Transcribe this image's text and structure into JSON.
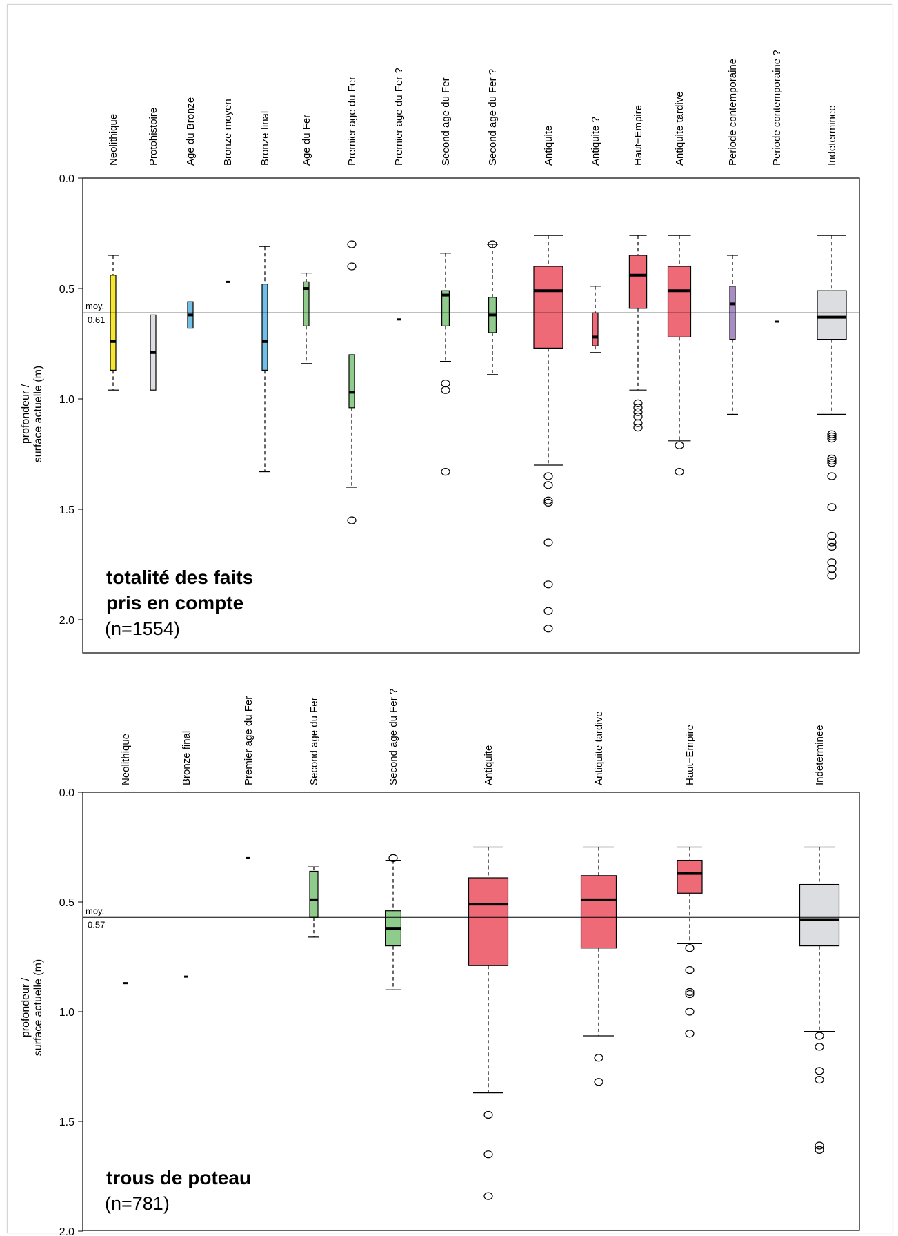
{
  "colors": {
    "yellow": "#f4e632",
    "blue": "#71bfe6",
    "green": "#8fcc8c",
    "red": "#ef6a77",
    "purple": "#a98bc5",
    "gray": "#dcdde0"
  },
  "chart_data": [
    {
      "type": "boxplot",
      "title": "totalité des faits",
      "title_line2": "pris en compte",
      "n_label": "(n=1554)",
      "ylabel_line1": "profondeur /",
      "ylabel_line2": "surface actuelle (m)",
      "ylim": [
        0,
        2.15
      ],
      "y_inverted": true,
      "yticks": [
        "0.0",
        "0.5",
        "1.0",
        "1.5",
        "2.0"
      ],
      "ytick_values": [
        0,
        0.5,
        1.0,
        1.5,
        2.0
      ],
      "mean_label": "moy.",
      "mean_value_label": "0.61",
      "mean": 0.61,
      "categories": [
        "Neolithique",
        "Protohistoire",
        "Age du Bronze",
        "Bronze moyen",
        "Bronze final",
        "Age du Fer",
        "Premier age du Fer",
        "Premier age du Fer ?",
        "Second age du Fer",
        "Second age du Fer ?",
        "Antiquite",
        "Antiquite ?",
        "Haut−Empire",
        "Antiquite tardive",
        "Periode contemporaine",
        "Periode contemporaine ?",
        "Indeterminee"
      ],
      "boxes": [
        {
          "color": "yellow",
          "width": 0.12,
          "whisker_low": 0.35,
          "q1": 0.44,
          "median": 0.74,
          "q3": 0.87,
          "whisker_high": 0.96,
          "outliers": []
        },
        {
          "color": "gray",
          "width": 0.08,
          "whisker_low": 0.62,
          "q1": 0.62,
          "median": 0.79,
          "q3": 0.96,
          "whisker_high": 0.96,
          "outliers": []
        },
        {
          "color": "blue",
          "width": 0.08,
          "whisker_low": 0.56,
          "q1": 0.56,
          "median": 0.62,
          "q3": 0.68,
          "whisker_high": 0.68,
          "outliers": []
        },
        {
          "color": null,
          "width": 0,
          "point": 0.47,
          "outliers": []
        },
        {
          "color": "blue",
          "width": 0.12,
          "whisker_low": 0.31,
          "q1": 0.48,
          "median": 0.74,
          "q3": 0.87,
          "whisker_high": 1.33,
          "outliers": []
        },
        {
          "color": "green",
          "width": 0.08,
          "whisker_low": 0.43,
          "q1": 0.47,
          "median": 0.5,
          "q3": 0.67,
          "whisker_high": 0.84,
          "outliers": []
        },
        {
          "color": "green",
          "width": 0.12,
          "whisker_low": 0.8,
          "q1": 0.8,
          "median": 0.97,
          "q3": 1.04,
          "whisker_high": 1.4,
          "outliers": [
            0.3,
            0.4,
            1.55
          ]
        },
        {
          "color": null,
          "width": 0,
          "point": 0.64,
          "outliers": []
        },
        {
          "color": "green",
          "width": 0.18,
          "whisker_low": 0.34,
          "q1": 0.51,
          "median": 0.53,
          "q3": 0.67,
          "whisker_high": 0.83,
          "outliers": [
            0.93,
            0.96,
            1.33
          ]
        },
        {
          "color": "green",
          "width": 0.18,
          "whisker_low": 0.3,
          "q1": 0.54,
          "median": 0.62,
          "q3": 0.7,
          "whisker_high": 0.89,
          "outliers": [
            0.3
          ]
        },
        {
          "color": "red",
          "width": 0.7,
          "whisker_low": 0.26,
          "q1": 0.4,
          "median": 0.51,
          "q3": 0.77,
          "whisker_high": 1.3,
          "outliers": [
            1.35,
            1.39,
            1.46,
            1.47,
            1.65,
            1.84,
            1.96,
            2.04
          ]
        },
        {
          "color": "red",
          "width": 0.08,
          "whisker_low": 0.49,
          "q1": 0.61,
          "median": 0.72,
          "q3": 0.76,
          "whisker_high": 0.79,
          "outliers": []
        },
        {
          "color": "red",
          "width": 0.42,
          "whisker_low": 0.26,
          "q1": 0.35,
          "median": 0.44,
          "q3": 0.59,
          "whisker_high": 0.96,
          "outliers": [
            1.02,
            1.04,
            1.06,
            1.08,
            1.11,
            1.13
          ]
        },
        {
          "color": "red",
          "width": 0.55,
          "whisker_low": 0.26,
          "q1": 0.4,
          "median": 0.51,
          "q3": 0.72,
          "whisker_high": 1.19,
          "outliers": [
            1.21,
            1.33
          ]
        },
        {
          "color": "purple",
          "width": 0.12,
          "whisker_low": 0.35,
          "q1": 0.49,
          "median": 0.57,
          "q3": 0.73,
          "whisker_high": 1.07,
          "outliers": []
        },
        {
          "color": null,
          "width": 0,
          "point": 0.65,
          "outliers": []
        },
        {
          "color": "gray",
          "width": 0.7,
          "whisker_low": 0.26,
          "q1": 0.51,
          "median": 0.63,
          "q3": 0.73,
          "whisker_high": 1.07,
          "outliers": [
            1.16,
            1.17,
            1.18,
            1.27,
            1.28,
            1.29,
            1.35,
            1.49,
            1.62,
            1.65,
            1.67,
            1.74,
            1.77,
            1.8
          ]
        }
      ]
    },
    {
      "type": "boxplot",
      "title": "trous de poteau",
      "title_line2": "",
      "n_label": "(n=781)",
      "ylabel_line1": "profondeur /",
      "ylabel_line2": "surface actuelle (m)",
      "ylim": [
        0,
        2.0
      ],
      "y_inverted": true,
      "yticks": [
        "0.0",
        "0.5",
        "1.0",
        "1.5",
        "2.0"
      ],
      "ytick_values": [
        0,
        0.5,
        1.0,
        1.5,
        2.0
      ],
      "mean_label": "moy.",
      "mean_value_label": "0.57",
      "mean": 0.57,
      "categories": [
        "Neolithique",
        "Bronze final",
        "Premier age du Fer",
        "Second age du Fer",
        "Second age du Fer ?",
        "Antiquite",
        "Antiquite tardive",
        "Haut−Empire",
        "Indeterminee"
      ],
      "boxes": [
        {
          "color": null,
          "width": 0,
          "point": 0.87,
          "outliers": []
        },
        {
          "color": null,
          "width": 0,
          "point": 0.84,
          "outliers": []
        },
        {
          "color": null,
          "width": 0,
          "point": 0.3,
          "outliers": []
        },
        {
          "color": "green",
          "width": 0.2,
          "whisker_low": 0.34,
          "q1": 0.36,
          "median": 0.49,
          "q3": 0.57,
          "whisker_high": 0.66,
          "outliers": []
        },
        {
          "color": "green",
          "width": 0.38,
          "whisker_low": 0.31,
          "q1": 0.54,
          "median": 0.62,
          "q3": 0.7,
          "whisker_high": 0.9,
          "outliers": [
            0.3
          ]
        },
        {
          "color": "red",
          "width": 0.95,
          "whisker_low": 0.25,
          "q1": 0.39,
          "median": 0.51,
          "q3": 0.79,
          "whisker_high": 1.37,
          "outliers": [
            1.47,
            1.65,
            1.84
          ]
        },
        {
          "color": "red",
          "width": 0.85,
          "whisker_low": 0.25,
          "q1": 0.38,
          "median": 0.49,
          "q3": 0.71,
          "whisker_high": 1.11,
          "outliers": [
            1.21,
            1.32
          ]
        },
        {
          "color": "red",
          "width": 0.6,
          "whisker_low": 0.25,
          "q1": 0.31,
          "median": 0.37,
          "q3": 0.46,
          "whisker_high": 0.69,
          "outliers": [
            0.71,
            0.81,
            0.91,
            0.92,
            1.0,
            1.1
          ]
        },
        {
          "color": "gray",
          "width": 0.95,
          "whisker_low": 0.25,
          "q1": 0.42,
          "median": 0.58,
          "q3": 0.7,
          "whisker_high": 1.09,
          "outliers": [
            1.11,
            1.16,
            1.27,
            1.31,
            1.61,
            1.63
          ]
        }
      ]
    }
  ]
}
